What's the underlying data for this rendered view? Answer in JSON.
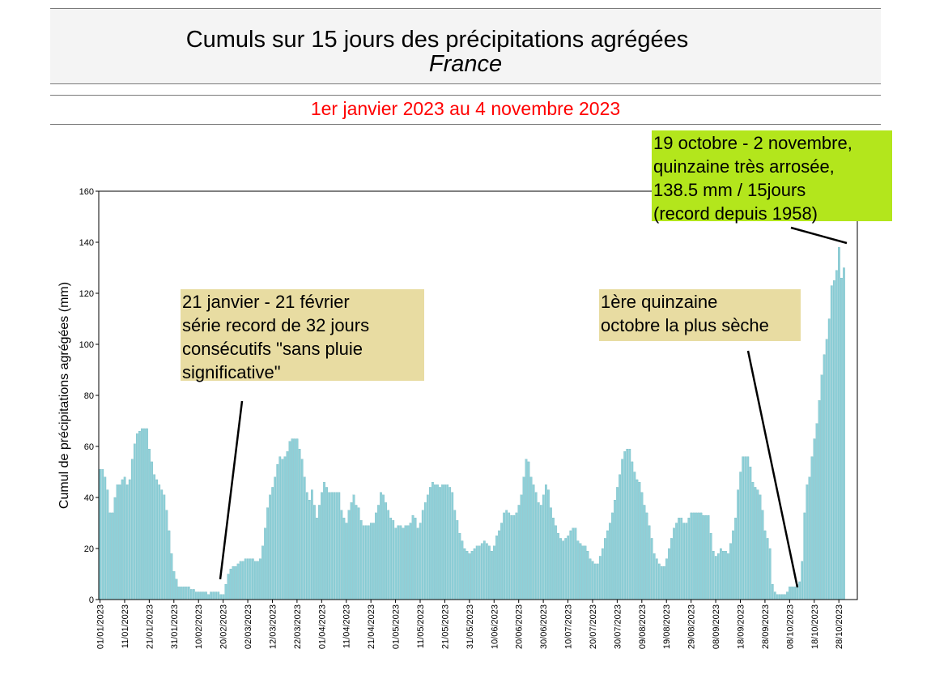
{
  "header": {
    "title_line1": "Cumuls sur 15 jours des précipitations agrégées",
    "title_line2": "France",
    "subtitle": "1er janvier 2023 au 4 novembre 2023"
  },
  "colors": {
    "bar": "#8fd0d8",
    "bar_edge": "#5aa9b4",
    "subtitle": "#ff0000",
    "annotation_tan": "#e8dca2",
    "annotation_green": "#b3e61c"
  },
  "annotations": [
    {
      "text": "21 janvier - 21 février\nsérie record de 32 jours\nconsécutifs \"sans pluie\nsignificative\""
    },
    {
      "text": "1ère quinzaine\noctobre la plus sèche"
    },
    {
      "text": "19 octobre - 2 novembre,\nquinzaine très arrosée,\n138.5 mm / 15jours\n(record depuis 1958)"
    }
  ],
  "chart_data": {
    "type": "bar",
    "ylabel": "Cumul de précipitations agrégées (mm)",
    "xlabel": "",
    "ylim": [
      0,
      160
    ],
    "yticks": [
      "0",
      "20",
      "40",
      "60",
      "80",
      "100",
      "120",
      "140",
      "160"
    ],
    "x_start": "01/01/2023",
    "x_end": "04/11/2023",
    "xticks": [
      "01/01/2023",
      "11/01/2023",
      "21/01/2023",
      "31/01/2023",
      "10/02/2023",
      "20/02/2023",
      "02/03/2023",
      "12/03/2023",
      "22/03/2023",
      "01/04/2023",
      "11/04/2023",
      "21/04/2023",
      "01/05/2023",
      "11/05/2023",
      "21/05/2023",
      "31/05/2023",
      "10/06/2023",
      "20/06/2023",
      "30/06/2023",
      "10/07/2023",
      "20/07/2023",
      "30/07/2023",
      "09/08/2023",
      "19/08/2023",
      "29/08/2023",
      "08/09/2023",
      "18/09/2023",
      "28/09/2023",
      "08/10/2023",
      "18/10/2023",
      "28/10/2023"
    ],
    "grid": false,
    "values": [
      51,
      51,
      48,
      43,
      34,
      34,
      40,
      45,
      45,
      47,
      48,
      45,
      47,
      55,
      61,
      65,
      66,
      67,
      67,
      67,
      59,
      54,
      49,
      47,
      45,
      43,
      41,
      35,
      27,
      18,
      11,
      8,
      5,
      5,
      5,
      5,
      5,
      4,
      4,
      3,
      3,
      3,
      3,
      3,
      2,
      3,
      3,
      3,
      3,
      2,
      2,
      6,
      10,
      12,
      13,
      13,
      14,
      15,
      15,
      16,
      16,
      16,
      16,
      15,
      15,
      16,
      21,
      28,
      36,
      41,
      44,
      48,
      53,
      56,
      55,
      56,
      58,
      62,
      63,
      63,
      63,
      59,
      55,
      48,
      42,
      39,
      43,
      37,
      32,
      37,
      42,
      46,
      44,
      42,
      42,
      42,
      42,
      42,
      35,
      32,
      30,
      35,
      38,
      41,
      37,
      36,
      31,
      29,
      29,
      29,
      30,
      30,
      34,
      37,
      42,
      41,
      38,
      35,
      32,
      31,
      28,
      29,
      29,
      28,
      29,
      29,
      30,
      33,
      32,
      28,
      30,
      35,
      38,
      41,
      44,
      46,
      45,
      45,
      44,
      45,
      45,
      45,
      44,
      42,
      35,
      31,
      26,
      23,
      20,
      19,
      18,
      19,
      20,
      21,
      21,
      22,
      23,
      22,
      21,
      19,
      21,
      25,
      27,
      30,
      34,
      35,
      34,
      33,
      33,
      34,
      37,
      41,
      48,
      55,
      54,
      48,
      45,
      42,
      38,
      37,
      41,
      45,
      43,
      36,
      32,
      29,
      26,
      24,
      23,
      24,
      25,
      27,
      28,
      28,
      23,
      22,
      21,
      21,
      19,
      16,
      15,
      14,
      14,
      17,
      20,
      24,
      27,
      30,
      34,
      39,
      44,
      49,
      55,
      58,
      59,
      59,
      54,
      50,
      47,
      46,
      42,
      37,
      34,
      29,
      24,
      18,
      16,
      14,
      13,
      13,
      16,
      20,
      24,
      28,
      30,
      32,
      32,
      30,
      30,
      32,
      34,
      34,
      34,
      34,
      34,
      33,
      33,
      33,
      26,
      19,
      17,
      18,
      20,
      19,
      19,
      18,
      22,
      27,
      32,
      43,
      50,
      56,
      56,
      56,
      52,
      46,
      44,
      43,
      41,
      35,
      27,
      24,
      20,
      6,
      3,
      2,
      2,
      2,
      2,
      3,
      5,
      5,
      5,
      6,
      7,
      15,
      34,
      45,
      48,
      56,
      63,
      69,
      78,
      88,
      96,
      102,
      110,
      123,
      125,
      129,
      138,
      126,
      130
    ]
  }
}
